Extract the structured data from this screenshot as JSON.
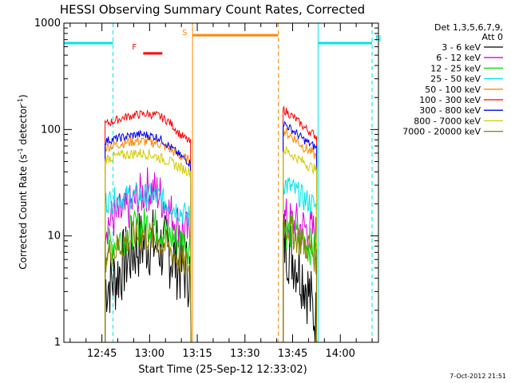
{
  "chart_data": {
    "type": "line",
    "title": "HESSI Observing Summary Count Rates, Corrected",
    "xlabel": "Start Time (25-Sep-12 12:33:02)",
    "ylabel_main": "Corrected Count Rate (s",
    "ylabel_sup1": "-1",
    "ylabel_mid": " detector",
    "ylabel_sup2": "-1",
    "ylabel_end": ")",
    "footer": "7-Oct-2012 21:51",
    "x_ticks": [
      "12:45",
      "13:00",
      "13:15",
      "13:30",
      "13:45",
      "14:00"
    ],
    "y_ticks": [
      "1",
      "10",
      "100",
      "1000"
    ],
    "ylim": [
      1,
      1000
    ],
    "y_scale": "log",
    "xlim": [
      "12:33:02",
      "14:12:00"
    ],
    "legend": {
      "header1": "Det 1,3,5,6,7,9,",
      "header2": "Att 0",
      "placement": "top-right"
    },
    "series": [
      {
        "name": "3 - 6 keV",
        "color": "#000000",
        "seg1": [
          3.5,
          4,
          6,
          8,
          9,
          8,
          7,
          5,
          4.5
        ],
        "seg2": [
          9,
          8,
          7,
          6,
          5,
          4,
          3,
          2,
          1.5
        ]
      },
      {
        "name": "6 - 12 keV",
        "color": "#dd00dd",
        "seg1": [
          13,
          15,
          17,
          22,
          28,
          25,
          17,
          12,
          10
        ],
        "seg2": [
          14,
          14,
          13,
          13,
          12,
          12,
          11,
          11,
          10
        ]
      },
      {
        "name": "12 - 25 keV",
        "color": "#00dd00",
        "seg1": [
          7.5,
          9,
          10,
          12,
          13,
          12,
          10,
          9,
          8
        ],
        "seg2": [
          12,
          11,
          11,
          10,
          9,
          9,
          8,
          8,
          7
        ]
      },
      {
        "name": "25 - 50 keV",
        "color": "#00e5e5",
        "seg1": [
          21,
          22,
          23,
          24,
          24,
          23,
          20,
          17,
          15
        ],
        "seg2": [
          32,
          30,
          28,
          26,
          24,
          22,
          21,
          20,
          18
        ]
      },
      {
        "name": "50 - 100 keV",
        "color": "#ff8800",
        "seg1": [
          68,
          72,
          76,
          78,
          77,
          74,
          66,
          56,
          50
        ],
        "seg2": [
          98,
          92,
          86,
          80,
          74,
          68,
          64,
          60,
          55
        ]
      },
      {
        "name": "100 - 300 keV",
        "color": "#ff0000",
        "seg1": [
          112,
          122,
          132,
          138,
          140,
          135,
          118,
          90,
          75
        ],
        "seg2": [
          155,
          145,
          135,
          125,
          115,
          105,
          98,
          92,
          85
        ]
      },
      {
        "name": "300 - 800 keV",
        "color": "#0000ee",
        "seg1": [
          78,
          82,
          86,
          90,
          89,
          84,
          70,
          57,
          48
        ],
        "seg2": [
          115,
          108,
          100,
          93,
          86,
          80,
          75,
          71,
          67
        ]
      },
      {
        "name": "800 - 7000 keV",
        "color": "#d0cc00",
        "seg1": [
          53,
          56,
          58,
          60,
          59,
          55,
          50,
          44,
          40
        ],
        "seg2": [
          65,
          62,
          58,
          55,
          52,
          49,
          46,
          44,
          41
        ]
      },
      {
        "name": "7000 - 20000 keV",
        "color": "#8b7d00",
        "seg1": [
          6.5,
          7.5,
          9,
          10,
          10,
          9,
          7.5,
          6,
          5
        ],
        "seg2": [
          13,
          12,
          11,
          10,
          9,
          8.5,
          8,
          7,
          6
        ]
      }
    ],
    "intervals": {
      "night": [
        {
          "label": "",
          "start": "12:33:02",
          "end": "12:48:30",
          "color": "#00e5e5"
        },
        {
          "label": "N",
          "start": "13:53:00",
          "end": "14:10:00",
          "color": "#00e5e5"
        }
      ],
      "saa": {
        "label": "S",
        "start": "13:13:30",
        "end": "13:40:30",
        "color": "#ff8800"
      },
      "flare": {
        "label": "F",
        "start": "12:58:00",
        "end": "13:04:00",
        "color": "#ff0000"
      }
    }
  }
}
